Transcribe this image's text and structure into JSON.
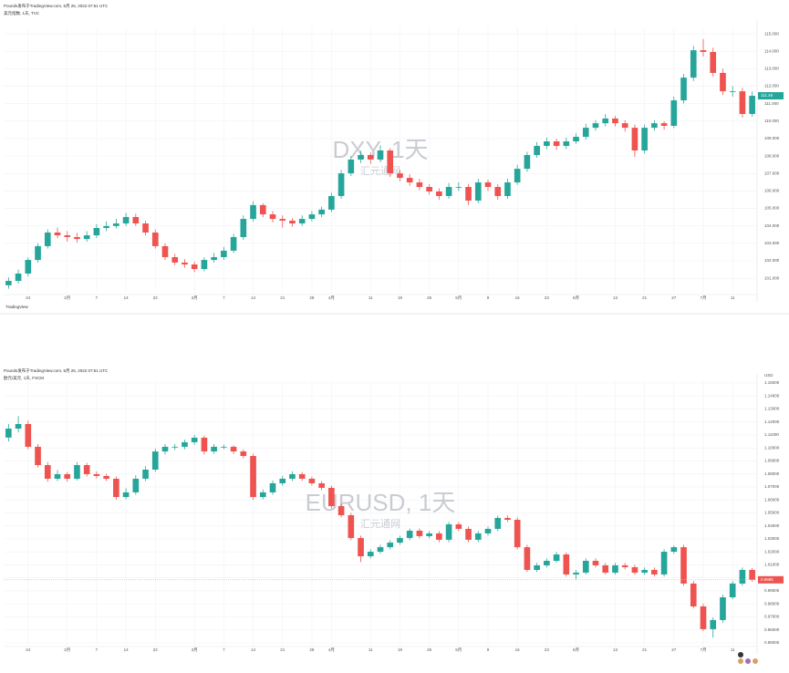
{
  "chart_data": [
    {
      "type": "candlestick",
      "title": "Pounds发布于TradingView.com, 5月 26, 2022 07:51 UTC",
      "symbol": "美元指数, 1天, TVC",
      "watermark": "DXY, 1天",
      "watermark_sub": "汇元通网",
      "brand": "TradingView",
      "up_color": "#26a69a",
      "down_color": "#ef5350",
      "grid": true,
      "price_line": false,
      "categories": [
        null,
        null,
        "24",
        null,
        null,
        null,
        "2月",
        null,
        null,
        "7",
        null,
        null,
        "14",
        null,
        null,
        "22",
        null,
        null,
        null,
        "3月",
        null,
        null,
        "7",
        null,
        null,
        "14",
        null,
        null,
        "21",
        null,
        null,
        "28",
        null,
        "4月",
        null,
        null,
        null,
        "11",
        null,
        null,
        "19",
        null,
        null,
        "25",
        null,
        null,
        "5月",
        null,
        null,
        "9",
        null,
        null,
        "16",
        null,
        null,
        "23",
        null,
        null,
        "6月",
        null,
        null,
        null,
        "13",
        null,
        null,
        "21",
        null,
        null,
        "27",
        null,
        null,
        "7月",
        null,
        null,
        "11",
        null,
        null
      ],
      "open": [
        100.6,
        100.85,
        101.27,
        102.05,
        102.84,
        103.62,
        103.46,
        103.36,
        103.25,
        103.46,
        103.88,
        103.99,
        104.14,
        104.51,
        104.14,
        103.62,
        102.84,
        102.21,
        101.9,
        101.79,
        101.53,
        102.05,
        102.21,
        102.58,
        103.36,
        104.4,
        105.19,
        104.66,
        104.4,
        104.3,
        104.14,
        104.4,
        104.66,
        104.93,
        105.71,
        107.01,
        107.8,
        108.06,
        107.8,
        108.32,
        107.01,
        106.75,
        106.49,
        106.23,
        105.97,
        105.71,
        106.23,
        106.23,
        105.45,
        106.49,
        106.23,
        105.71,
        106.49,
        107.27,
        108.06,
        108.58,
        108.84,
        108.58,
        108.84,
        109.1,
        109.62,
        109.88,
        110.15,
        109.88,
        109.62,
        108.32,
        109.62,
        109.88,
        109.73,
        111.19,
        112.49,
        114.06,
        113.96,
        112.76,
        111.71,
        111.71,
        110.41
      ],
      "high": [
        101.05,
        101.5,
        102.2,
        103.0,
        103.8,
        103.9,
        103.7,
        103.6,
        103.7,
        104.1,
        104.25,
        104.4,
        104.75,
        104.7,
        104.3,
        103.8,
        103.0,
        102.4,
        102.1,
        101.95,
        102.2,
        102.45,
        102.8,
        103.55,
        104.6,
        105.4,
        105.3,
        104.85,
        104.6,
        104.45,
        104.6,
        104.85,
        105.1,
        105.9,
        107.2,
        108.0,
        108.3,
        108.2,
        108.6,
        108.45,
        107.2,
        106.95,
        106.7,
        106.4,
        106.15,
        106.45,
        106.5,
        106.4,
        106.7,
        106.65,
        106.4,
        106.7,
        107.5,
        108.25,
        108.8,
        109.05,
        109.0,
        109.05,
        109.3,
        109.85,
        110.05,
        110.4,
        110.3,
        110.05,
        109.8,
        109.8,
        110.05,
        110.0,
        111.4,
        112.7,
        114.3,
        114.7,
        114.2,
        113.0,
        112.0,
        111.9,
        111.7
      ],
      "low": [
        100.4,
        100.7,
        101.1,
        101.9,
        102.7,
        103.3,
        103.1,
        103.05,
        103.1,
        103.3,
        103.7,
        103.85,
        104.0,
        104.0,
        103.45,
        102.7,
        102.05,
        101.75,
        101.6,
        101.35,
        101.4,
        101.9,
        102.05,
        102.45,
        103.2,
        104.25,
        104.5,
        104.2,
        103.9,
        103.95,
        104.0,
        104.25,
        104.5,
        104.8,
        105.55,
        106.85,
        107.6,
        107.55,
        107.65,
        106.8,
        106.55,
        106.3,
        106.05,
        105.8,
        105.5,
        105.55,
        106.0,
        105.2,
        105.3,
        106.0,
        105.5,
        105.55,
        106.35,
        107.1,
        107.9,
        108.4,
        108.35,
        108.4,
        108.7,
        108.95,
        109.45,
        109.7,
        109.7,
        109.4,
        107.95,
        108.15,
        109.45,
        109.5,
        109.6,
        111.0,
        112.3,
        113.7,
        112.55,
        111.5,
        111.4,
        110.2,
        110.25
      ],
      "close": [
        100.85,
        101.27,
        102.05,
        102.84,
        103.62,
        103.46,
        103.36,
        103.25,
        103.46,
        103.88,
        103.99,
        104.14,
        104.51,
        104.14,
        103.62,
        102.84,
        102.21,
        101.9,
        101.79,
        101.53,
        102.05,
        102.21,
        102.58,
        103.36,
        104.4,
        105.19,
        104.66,
        104.4,
        104.3,
        104.14,
        104.4,
        104.66,
        104.93,
        105.71,
        107.01,
        107.8,
        108.06,
        107.8,
        108.32,
        107.01,
        106.75,
        106.49,
        106.23,
        105.97,
        105.71,
        106.23,
        106.23,
        105.45,
        106.49,
        106.23,
        105.71,
        106.49,
        107.27,
        108.06,
        108.58,
        108.84,
        108.58,
        108.84,
        109.1,
        109.62,
        109.88,
        110.15,
        109.88,
        109.62,
        108.32,
        109.62,
        109.88,
        109.73,
        111.19,
        112.49,
        114.06,
        113.96,
        112.76,
        111.71,
        111.71,
        110.41,
        111.45
      ],
      "ylim": [
        100.12,
        115.37
      ],
      "yticks": [
        {
          "value": 101,
          "label": "101.000"
        },
        {
          "value": 102,
          "label": "102.000"
        },
        {
          "value": 103,
          "label": "103.000"
        },
        {
          "value": 104,
          "label": "104.000"
        },
        {
          "value": 105,
          "label": "105.000"
        },
        {
          "value": 106,
          "label": "106.000"
        },
        {
          "value": 107,
          "label": "107.000"
        },
        {
          "value": 108,
          "label": "108.000"
        },
        {
          "value": 109,
          "label": "109.000"
        },
        {
          "value": 110,
          "label": "110.000"
        },
        {
          "value": 111,
          "label": "111.000"
        },
        {
          "value": 112,
          "label": "112.000"
        },
        {
          "value": 113,
          "label": "113.000"
        },
        {
          "value": 114,
          "label": "114.000"
        },
        {
          "value": 115,
          "label": "115.000"
        }
      ]
    },
    {
      "type": "candlestick",
      "title": "Pounds发布于TradingView.com, 5月 26, 2022 07:51 UTC",
      "symbol": "欧元/美元, 1天, FXCM",
      "watermark": "EURUSD, 1天",
      "watermark_sub": "汇元通网",
      "axis_unit": "USD",
      "up_color": "#26a69a",
      "down_color": "#ef5350",
      "grid": true,
      "price_line": true,
      "categories": [
        null,
        null,
        "24",
        null,
        null,
        null,
        "2月",
        null,
        null,
        "7",
        null,
        null,
        "14",
        null,
        null,
        "22",
        null,
        null,
        null,
        "3月",
        null,
        null,
        "7",
        null,
        null,
        "14",
        null,
        null,
        "21",
        null,
        null,
        "28",
        null,
        "4月",
        null,
        null,
        null,
        "11",
        null,
        null,
        "19",
        null,
        null,
        "25",
        null,
        null,
        "5月",
        null,
        null,
        "9",
        null,
        null,
        "16",
        null,
        null,
        "23",
        null,
        null,
        "6月",
        null,
        null,
        null,
        "13",
        null,
        null,
        "21",
        null,
        null,
        "27",
        null,
        null,
        "7月",
        null,
        null,
        "11",
        null,
        null
      ],
      "open": [
        1.108,
        1.1149,
        1.1184,
        1.1009,
        1.0868,
        1.0763,
        1.0798,
        1.0763,
        1.0868,
        1.0798,
        1.0784,
        1.0763,
        1.0622,
        1.0658,
        1.0763,
        1.0833,
        1.0973,
        1.1009,
        1.1009,
        1.1044,
        1.1079,
        1.0973,
        1.1009,
        1.1009,
        1.0973,
        1.0938,
        1.0622,
        1.0658,
        1.0728,
        1.0763,
        1.0798,
        1.0763,
        1.0728,
        1.0693,
        1.0552,
        1.0482,
        1.0307,
        1.0166,
        1.0201,
        1.0236,
        1.0271,
        1.0307,
        1.0363,
        1.0321,
        1.0342,
        1.0293,
        1.0412,
        1.0377,
        1.0293,
        1.0342,
        1.0377,
        1.0461,
        1.0447,
        1.0236,
        1.0061,
        1.0096,
        1.0131,
        1.018,
        1.0026,
        1.004,
        1.0131,
        1.0096,
        1.004,
        1.0096,
        1.0082,
        1.004,
        1.0061,
        1.0026,
        1.0201,
        1.0236,
        0.9956,
        0.978,
        0.9605,
        0.9675,
        0.985,
        0.9956,
        1.0061
      ],
      "high": [
        1.1185,
        1.1245,
        1.121,
        1.103,
        1.089,
        1.083,
        1.0815,
        1.089,
        1.0885,
        1.082,
        1.08,
        1.078,
        1.069,
        1.079,
        1.086,
        1.0995,
        1.103,
        1.103,
        1.1065,
        1.11,
        1.1095,
        1.103,
        1.1025,
        1.102,
        1.099,
        1.0955,
        1.068,
        1.075,
        1.0785,
        1.082,
        1.0815,
        1.078,
        1.0745,
        1.071,
        1.057,
        1.05,
        1.0325,
        1.022,
        1.0255,
        1.029,
        1.0325,
        1.038,
        1.038,
        1.036,
        1.036,
        1.043,
        1.043,
        1.0395,
        1.036,
        1.0395,
        1.048,
        1.048,
        1.0465,
        1.0255,
        1.0115,
        1.015,
        1.02,
        1.0195,
        1.006,
        1.015,
        1.015,
        1.0115,
        1.0115,
        1.0115,
        1.01,
        1.008,
        1.008,
        1.022,
        1.025,
        1.0255,
        0.9975,
        0.98,
        0.9695,
        0.987,
        0.9975,
        1.008,
        1.0075
      ],
      "low": [
        1.105,
        1.112,
        1.099,
        1.085,
        1.074,
        1.0745,
        1.074,
        1.075,
        1.078,
        1.0765,
        1.0745,
        1.06,
        1.0605,
        1.064,
        1.0745,
        1.0815,
        1.095,
        1.0985,
        1.099,
        1.1025,
        1.095,
        1.0955,
        1.099,
        1.0955,
        1.092,
        1.06,
        1.0605,
        1.064,
        1.071,
        1.0745,
        1.0745,
        1.071,
        1.0675,
        1.0535,
        1.0465,
        1.029,
        1.012,
        1.015,
        1.0185,
        1.022,
        1.0255,
        1.029,
        1.0305,
        1.0305,
        1.0275,
        1.0275,
        1.036,
        1.0275,
        1.0275,
        1.0325,
        1.036,
        1.043,
        1.022,
        1.0045,
        1.0045,
        1.008,
        1.0115,
        1.001,
        0.999,
        1.0025,
        1.008,
        1.0025,
        1.0025,
        1.0065,
        1.0025,
        1.0025,
        1.001,
        1.001,
        1.0185,
        0.994,
        0.9765,
        0.959,
        0.954,
        0.9655,
        0.9835,
        0.994,
        0.997
      ],
      "close": [
        1.1149,
        1.1184,
        1.1009,
        1.0868,
        1.0763,
        1.0798,
        1.0763,
        1.0868,
        1.0798,
        1.0784,
        1.0763,
        1.0622,
        1.0658,
        1.0763,
        1.0833,
        1.0973,
        1.1009,
        1.1009,
        1.1044,
        1.1079,
        1.0973,
        1.1009,
        1.1009,
        1.0973,
        1.0938,
        1.0622,
        1.0658,
        1.0728,
        1.0763,
        1.0798,
        1.0763,
        1.0728,
        1.0693,
        1.0552,
        1.0482,
        1.0307,
        1.0166,
        1.0201,
        1.0236,
        1.0271,
        1.0307,
        1.0363,
        1.0321,
        1.0342,
        1.0293,
        1.0412,
        1.0377,
        1.0293,
        1.0342,
        1.0377,
        1.0461,
        1.0447,
        1.0236,
        1.0061,
        1.0096,
        1.0131,
        1.018,
        1.0026,
        1.004,
        1.0131,
        1.0096,
        1.004,
        1.0096,
        1.0082,
        1.004,
        1.0061,
        1.0026,
        1.0201,
        1.0236,
        0.9956,
        0.978,
        0.9605,
        0.9675,
        0.985,
        0.9956,
        1.0061,
        0.9985
      ],
      "ylim": [
        0.9478,
        1.1514
      ],
      "yticks": [
        {
          "value": 0.95,
          "label": "0.95000"
        },
        {
          "value": 0.96,
          "label": "0.96000"
        },
        {
          "value": 0.97,
          "label": "0.97000"
        },
        {
          "value": 0.98,
          "label": "0.98000"
        },
        {
          "value": 0.99,
          "label": "0.99000"
        },
        {
          "value": 1.0,
          "label": "1.00000"
        },
        {
          "value": 1.01,
          "label": "1.01000"
        },
        {
          "value": 1.02,
          "label": "1.02000"
        },
        {
          "value": 1.03,
          "label": "1.03000"
        },
        {
          "value": 1.04,
          "label": "1.04000"
        },
        {
          "value": 1.05,
          "label": "1.05000"
        },
        {
          "value": 1.06,
          "label": "1.06000"
        },
        {
          "value": 1.07,
          "label": "1.07000"
        },
        {
          "value": 1.08,
          "label": "1.08000"
        },
        {
          "value": 1.09,
          "label": "1.09000"
        },
        {
          "value": 1.1,
          "label": "1.10000"
        },
        {
          "value": 1.11,
          "label": "1.11000"
        },
        {
          "value": 1.12,
          "label": "1.12000"
        },
        {
          "value": 1.13,
          "label": "1.13000"
        },
        {
          "value": 1.14,
          "label": "1.14000"
        },
        {
          "value": 1.15,
          "label": "1.15000"
        }
      ]
    }
  ]
}
